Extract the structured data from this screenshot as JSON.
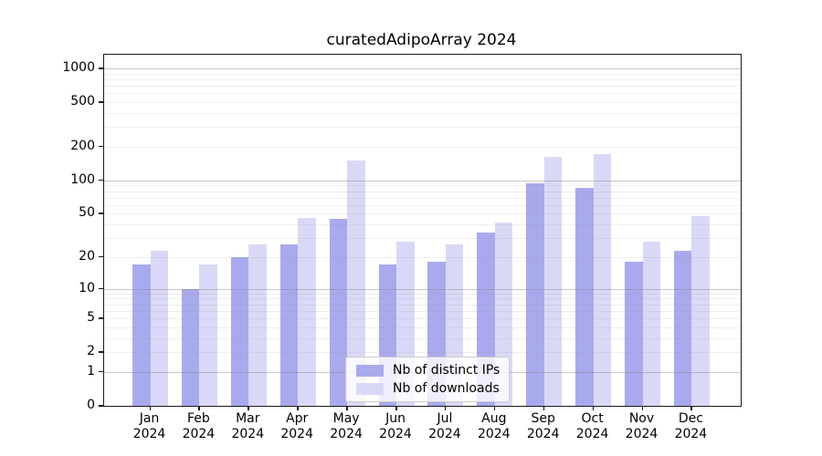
{
  "title": "curatedAdipoArray 2024",
  "chart_data": {
    "type": "bar",
    "title": "curatedAdipoArray 2024",
    "scale": "log10(1+x)",
    "grid": "horizontal major and minor gridlines, drawn over bars",
    "legend_position": "lower center",
    "ylim": [
      0,
      1300
    ],
    "yticks": [
      0,
      1,
      2,
      5,
      10,
      20,
      50,
      100,
      200,
      500,
      1000
    ],
    "categories": [
      {
        "month": "Jan",
        "year": "2024"
      },
      {
        "month": "Feb",
        "year": "2024"
      },
      {
        "month": "Mar",
        "year": "2024"
      },
      {
        "month": "Apr",
        "year": "2024"
      },
      {
        "month": "May",
        "year": "2024"
      },
      {
        "month": "Jun",
        "year": "2024"
      },
      {
        "month": "Jul",
        "year": "2024"
      },
      {
        "month": "Aug",
        "year": "2024"
      },
      {
        "month": "Sep",
        "year": "2024"
      },
      {
        "month": "Oct",
        "year": "2024"
      },
      {
        "month": "Nov",
        "year": "2024"
      },
      {
        "month": "Dec",
        "year": "2024"
      }
    ],
    "series": [
      {
        "name": "Nb of distinct IPs",
        "color": "#a9a9ee",
        "values": [
          17,
          10,
          20,
          26,
          45,
          17,
          18,
          34,
          95,
          85,
          18,
          23
        ]
      },
      {
        "name": "Nb of downloads",
        "color": "#d9d9f7",
        "values": [
          23,
          17,
          26,
          46,
          152,
          28,
          26,
          42,
          164,
          173,
          28,
          48
        ]
      }
    ]
  }
}
